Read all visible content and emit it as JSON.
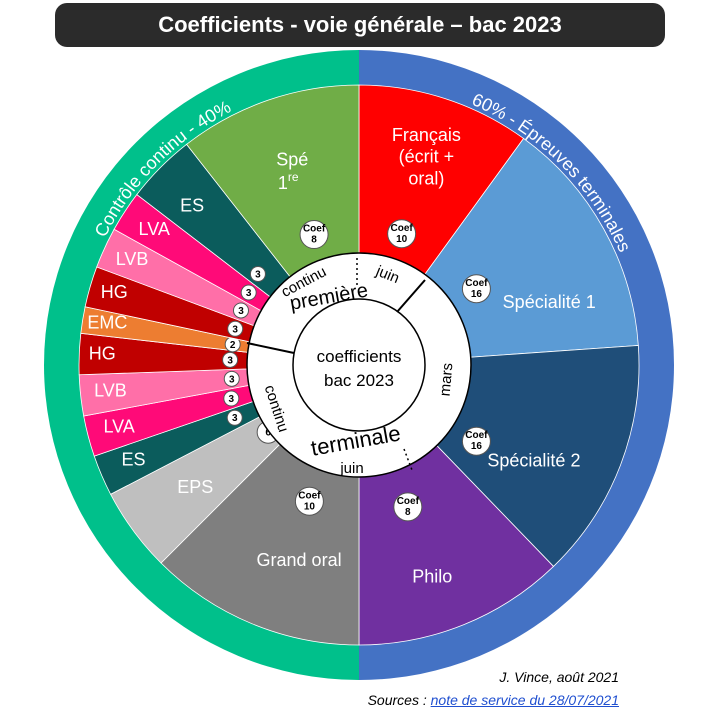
{
  "title": "Coefficients - voie générale – bac 2023",
  "arc_left": "Contrôle continu - 40%",
  "arc_right": "60% - Épreuves terminales",
  "center": {
    "line1": "coefficients",
    "line2": "bac 2023"
  },
  "ring": {
    "premiere": "première",
    "terminale": "terminale",
    "continu_top": "continu",
    "continu_left": "continu",
    "juin_top": "juin",
    "juin_bottom": "juin",
    "mars": "mars"
  },
  "colors": {
    "controle_continu": "#00c08b",
    "epreuves_terminales": "#4472c4"
  },
  "chart_data": {
    "type": "pie",
    "slices": [
      {
        "label": "Français (écrit + oral)",
        "coef_label": "Coef",
        "coef": 10,
        "color": "#ff0000"
      },
      {
        "label": "Spécialité 1",
        "coef_label": "Coef",
        "coef": 16,
        "color": "#5b9bd5"
      },
      {
        "label": "Spécialité 2",
        "coef_label": "Coef",
        "coef": 16,
        "color": "#1f4e79"
      },
      {
        "label": "Philo",
        "coef_label": "Coef",
        "coef": 8,
        "color": "#7030a0"
      },
      {
        "label": "Grand oral",
        "coef_label": "Coef",
        "coef": 10,
        "color": "#7f7f7f"
      },
      {
        "label": "EPS",
        "coef_label": "",
        "coef": 6,
        "color": "#bfbfbf"
      },
      {
        "label": "ES",
        "coef_label": "",
        "coef": 3,
        "color": "#0b5c5c"
      },
      {
        "label": "LVA",
        "coef_label": "",
        "coef": 3,
        "color": "#ff0a78"
      },
      {
        "label": "LVB",
        "coef_label": "",
        "coef": 3,
        "color": "#ff6fa8"
      },
      {
        "label": "HG",
        "coef_label": "",
        "coef": 3,
        "color": "#c00000"
      },
      {
        "label": "EMC",
        "coef_label": "",
        "coef": 2,
        "color": "#ed7d31"
      },
      {
        "label": "HG",
        "coef_label": "",
        "coef": 3,
        "color": "#c00000"
      },
      {
        "label": "LVB",
        "coef_label": "",
        "coef": 3,
        "color": "#ff6fa8"
      },
      {
        "label": "LVA",
        "coef_label": "",
        "coef": 3,
        "color": "#ff0a78"
      },
      {
        "label": "ES",
        "coef_label": "",
        "coef": 3,
        "color": "#0b5c5c"
      },
      {
        "label": "Spé 1re",
        "coef_label": "Coef",
        "coef": 8,
        "color": "#70ad47"
      }
    ]
  },
  "credits": {
    "author": "J. Vince, août 2021",
    "sources_prefix": "Sources : ",
    "sources_link": "note de service du 28/07/2021"
  }
}
